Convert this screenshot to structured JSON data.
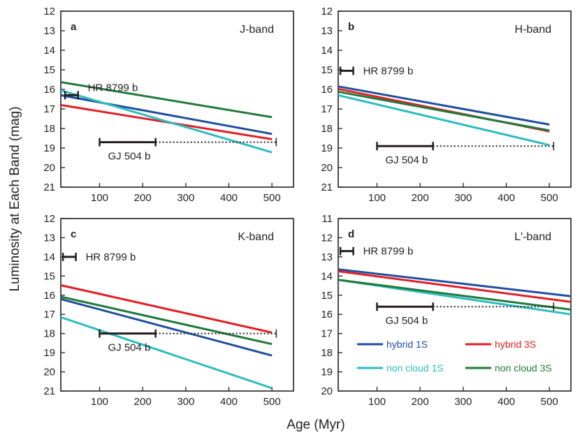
{
  "ylabel": "Luminosity at Each Band (mag)",
  "xlabel": "Age (Myr)",
  "colors": {
    "hybrid_1S": "#1f4e9e",
    "hybrid_3S": "#e31e24",
    "noncloud_1S": "#2ebcbf",
    "noncloud_3S": "#1f7a3a",
    "axis": "#231f20"
  },
  "legend": [
    {
      "key": "hybrid_1S",
      "label": "hybrid 1S"
    },
    {
      "key": "hybrid_3S",
      "label": "hybrid 3S"
    },
    {
      "key": "noncloud_1S",
      "label": "non cloud 1S"
    },
    {
      "key": "noncloud_3S",
      "label": "non cloud 3S"
    }
  ],
  "chart_data": [
    {
      "type": "line",
      "panel": "a",
      "title": "J-band",
      "xlim": [
        10,
        550
      ],
      "ylim": [
        21,
        12
      ],
      "xticks": [
        100,
        200,
        300,
        400,
        500
      ],
      "yticks": [
        12,
        13,
        14,
        15,
        16,
        17,
        18,
        19,
        20,
        21
      ],
      "series": [
        {
          "key": "hybrid_1S",
          "name": "hybrid 1S",
          "x": [
            10,
            500
          ],
          "y": [
            16.3,
            18.28
          ]
        },
        {
          "key": "hybrid_3S",
          "name": "hybrid 3S",
          "x": [
            10,
            500
          ],
          "y": [
            16.8,
            18.55
          ]
        },
        {
          "key": "noncloud_1S",
          "name": "non cloud 1S",
          "x": [
            10,
            500
          ],
          "y": [
            16.05,
            19.22
          ]
        },
        {
          "key": "noncloud_3S",
          "name": "non cloud 3S",
          "x": [
            10,
            500
          ],
          "y": [
            15.63,
            17.42
          ]
        }
      ],
      "annotations": [
        {
          "label": "HR 8799 b",
          "mag": 16.3,
          "age_min": 20,
          "age_max": 50,
          "dotted_to": null
        },
        {
          "label": "GJ 504 b",
          "mag": 18.7,
          "age_min": 100,
          "age_max": 230,
          "dotted_to": 510
        }
      ]
    },
    {
      "type": "line",
      "panel": "b",
      "title": "H-band",
      "xlim": [
        10,
        550
      ],
      "ylim": [
        21,
        12
      ],
      "xticks": [
        100,
        200,
        300,
        400,
        500
      ],
      "yticks": [
        12,
        13,
        14,
        15,
        16,
        17,
        18,
        19,
        20,
        21
      ],
      "series": [
        {
          "key": "hybrid_1S",
          "name": "hybrid 1S",
          "x": [
            10,
            500
          ],
          "y": [
            15.85,
            17.8
          ]
        },
        {
          "key": "hybrid_3S",
          "name": "hybrid 3S",
          "x": [
            10,
            500
          ],
          "y": [
            15.98,
            18.15
          ]
        },
        {
          "key": "noncloud_1S",
          "name": "non cloud 1S",
          "x": [
            10,
            500
          ],
          "y": [
            16.3,
            18.85
          ]
        },
        {
          "key": "noncloud_3S",
          "name": "non cloud 3S",
          "x": [
            10,
            500
          ],
          "y": [
            16.12,
            18.1
          ]
        }
      ],
      "annotations": [
        {
          "label": "HR 8799 b",
          "mag": 15.05,
          "age_min": 15,
          "age_max": 45,
          "dotted_to": null
        },
        {
          "label": "GJ 504 b",
          "mag": 18.9,
          "age_min": 100,
          "age_max": 230,
          "dotted_to": 510
        }
      ]
    },
    {
      "type": "line",
      "panel": "c",
      "title": "K-band",
      "xlim": [
        10,
        550
      ],
      "ylim": [
        21,
        12
      ],
      "xticks": [
        100,
        200,
        300,
        400,
        500
      ],
      "yticks": [
        12,
        13,
        14,
        15,
        16,
        17,
        18,
        19,
        20,
        21
      ],
      "series": [
        {
          "key": "hybrid_1S",
          "name": "hybrid 1S",
          "x": [
            10,
            500
          ],
          "y": [
            16.2,
            19.15
          ]
        },
        {
          "key": "hybrid_3S",
          "name": "hybrid 3S",
          "x": [
            10,
            500
          ],
          "y": [
            15.48,
            17.95
          ]
        },
        {
          "key": "noncloud_1S",
          "name": "non cloud 1S",
          "x": [
            10,
            500
          ],
          "y": [
            17.15,
            20.85
          ]
        },
        {
          "key": "noncloud_3S",
          "name": "non cloud 3S",
          "x": [
            10,
            500
          ],
          "y": [
            16.08,
            18.55
          ]
        }
      ],
      "annotations": [
        {
          "label": "HR 8799 b",
          "mag": 14.0,
          "age_min": 15,
          "age_max": 45,
          "dotted_to": null
        },
        {
          "label": "GJ 504 b",
          "mag": 18.0,
          "age_min": 100,
          "age_max": 230,
          "dotted_to": 510
        }
      ]
    },
    {
      "type": "line",
      "panel": "d",
      "title": "L'-band",
      "xlim": [
        10,
        550
      ],
      "ylim": [
        20,
        11
      ],
      "xticks": [
        100,
        200,
        300,
        400,
        500
      ],
      "yticks": [
        11,
        12,
        13,
        14,
        15,
        16,
        17,
        18,
        19,
        20
      ],
      "series": [
        {
          "key": "hybrid_1S",
          "name": "hybrid 1S",
          "x": [
            10,
            550
          ],
          "y": [
            13.65,
            15.05
          ]
        },
        {
          "key": "hybrid_3S",
          "name": "hybrid 3S",
          "x": [
            10,
            550
          ],
          "y": [
            13.75,
            15.35
          ]
        },
        {
          "key": "noncloud_1S",
          "name": "non cloud 1S",
          "x": [
            10,
            550
          ],
          "y": [
            14.2,
            16.0
          ]
        },
        {
          "key": "noncloud_3S",
          "name": "non cloud 3S",
          "x": [
            10,
            550
          ],
          "y": [
            14.2,
            15.75
          ]
        }
      ],
      "annotations": [
        {
          "label": "HR 8799 b",
          "mag": 12.7,
          "age_min": 15,
          "age_max": 45,
          "dotted_to": null
        },
        {
          "label": "GJ 504 b",
          "mag": 15.6,
          "age_min": 100,
          "age_max": 230,
          "dotted_to": 510
        }
      ]
    }
  ]
}
